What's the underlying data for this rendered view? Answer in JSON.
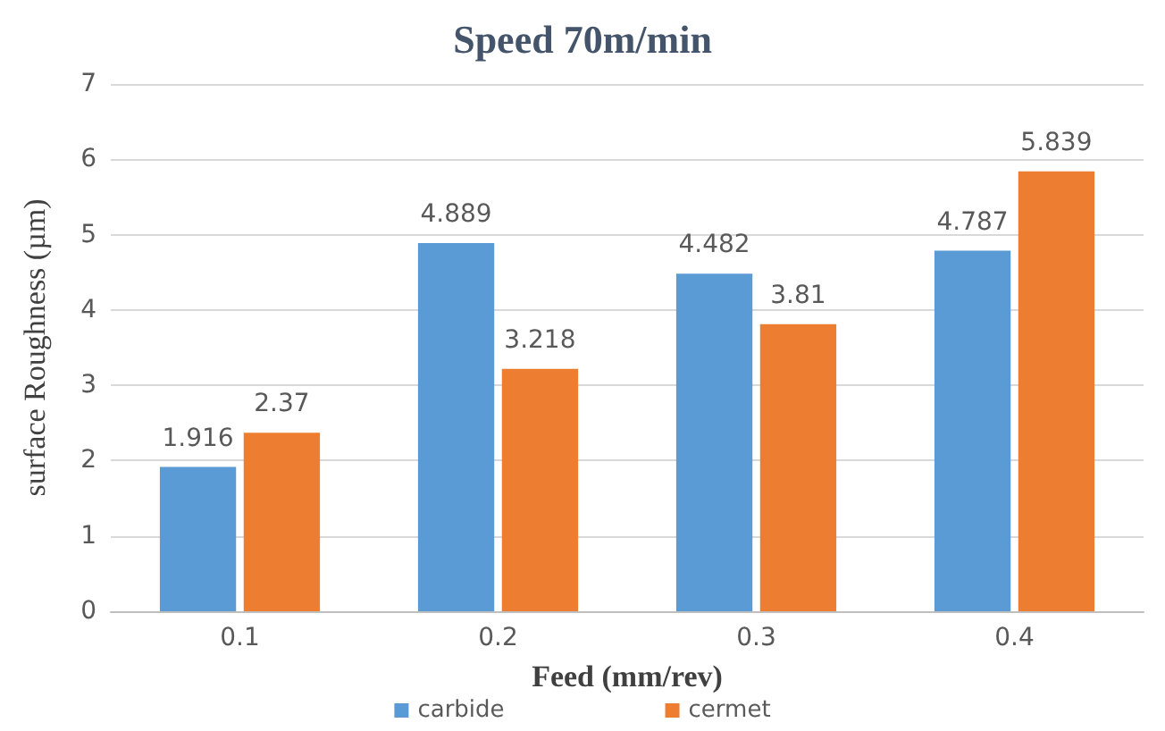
{
  "chart_data": {
    "type": "bar",
    "title": "Speed 70m/min",
    "xlabel": "Feed (mm/rev)",
    "ylabel": "surface Roughness (µm)",
    "categories": [
      "0.1",
      "0.2",
      "0.3",
      "0.4"
    ],
    "series": [
      {
        "name": "carbide",
        "color": "#5b9bd5",
        "values": [
          1.916,
          4.889,
          4.482,
          4.787
        ]
      },
      {
        "name": "cermet",
        "color": "#ed7d31",
        "values": [
          2.37,
          3.218,
          3.81,
          5.839
        ]
      }
    ],
    "ylim": [
      0,
      7
    ],
    "yticks": [
      0,
      1,
      2,
      3,
      4,
      5,
      6,
      7
    ],
    "grid": "y",
    "legend": "bottom",
    "data_labels": true
  }
}
